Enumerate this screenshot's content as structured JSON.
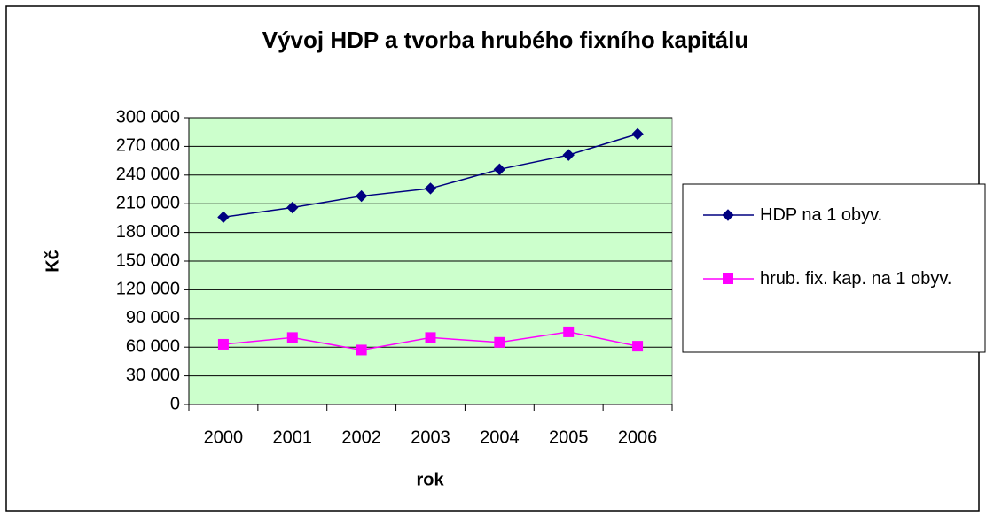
{
  "chart_data": {
    "type": "line",
    "title": "Vývoj HDP a tvorba hrubého fixního kapitálu",
    "x_label": "rok",
    "y_label": "Kč",
    "categories": [
      "2000",
      "2001",
      "2002",
      "2003",
      "2004",
      "2005",
      "2006"
    ],
    "series": [
      {
        "name": "HDP na 1 obyv.",
        "color": "#000080",
        "marker": "diamond",
        "values": [
          196000,
          206000,
          218000,
          226000,
          246000,
          261000,
          283000
        ]
      },
      {
        "name": "hrub. fix. kap. na 1 obyv.",
        "color": "#ff00ff",
        "marker": "square",
        "values": [
          63000,
          70000,
          57000,
          70000,
          65000,
          76000,
          61000
        ]
      }
    ],
    "ylim": [
      0,
      300000
    ],
    "yticks": [
      0,
      {
        "value": 30000,
        "label": "30 000"
      },
      {
        "value": 60000,
        "label": "60 000"
      },
      {
        "value": 90000,
        "label": "90 000"
      },
      {
        "value": 120000,
        "label": "120 000"
      },
      {
        "value": 150000,
        "label": "150 000"
      },
      {
        "value": 180000,
        "label": "180 000"
      },
      {
        "value": 210000,
        "label": "210 000"
      },
      {
        "value": 240000,
        "label": "240 000"
      },
      {
        "value": 270000,
        "label": "270 000"
      },
      {
        "value": 300000,
        "label": "300 000"
      }
    ],
    "grid": true,
    "legend": "right",
    "plot_background": "#ccffcc"
  }
}
